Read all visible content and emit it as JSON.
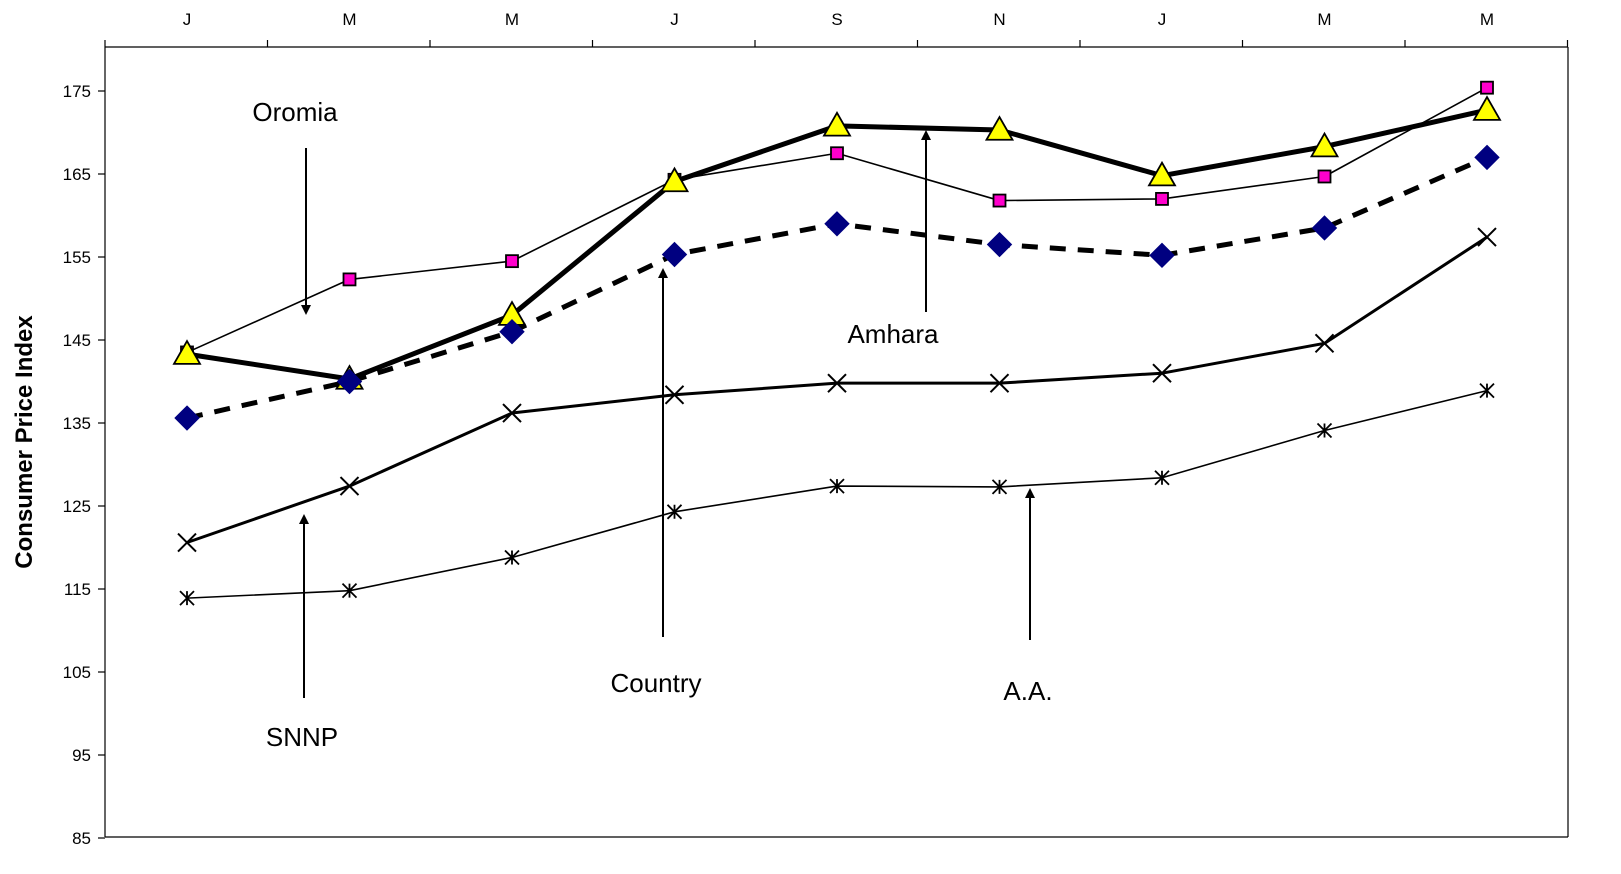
{
  "chart_data": {
    "type": "line",
    "title": "",
    "xlabel": "",
    "ylabel": "Consumer Price Index",
    "categories": [
      "J",
      "M",
      "M",
      "J",
      "S",
      "N",
      "J",
      "M",
      "M"
    ],
    "ylim": [
      85,
      180
    ],
    "yticks": [
      85,
      95,
      105,
      115,
      125,
      135,
      145,
      155,
      165,
      175
    ],
    "grid": false,
    "legend": "none",
    "series": [
      {
        "name": "Oromia",
        "marker": "square",
        "color": "#000000",
        "marker_fill": "#ff00cc",
        "line_style": "solid-thin",
        "values": [
          143.5,
          152.3,
          154.5,
          164.3,
          167.5,
          161.8,
          162.0,
          164.7,
          175.4
        ]
      },
      {
        "name": "Amhara",
        "marker": "triangle",
        "color": "#000000",
        "marker_fill": "#ffff00",
        "line_style": "solid-thick",
        "values": [
          143.3,
          140.3,
          148.0,
          164.1,
          170.8,
          170.3,
          164.8,
          168.3,
          172.7
        ]
      },
      {
        "name": "Country",
        "marker": "diamond",
        "color": "#000000",
        "marker_fill": "#000080",
        "line_style": "dashed",
        "values": [
          135.6,
          140.0,
          146.0,
          155.3,
          159.0,
          156.5,
          155.2,
          158.5,
          167.0
        ]
      },
      {
        "name": "SNNP",
        "marker": "x",
        "color": "#000000",
        "marker_fill": "#000000",
        "line_style": "solid-medium",
        "values": [
          120.6,
          127.4,
          136.2,
          138.4,
          139.8,
          139.8,
          141.0,
          144.6,
          157.4
        ]
      },
      {
        "name": "A.A.",
        "marker": "asterisk",
        "color": "#000000",
        "marker_fill": "#000000",
        "line_style": "solid-thin",
        "values": [
          113.9,
          114.8,
          118.8,
          124.3,
          127.4,
          127.3,
          128.4,
          134.1,
          138.9
        ]
      }
    ],
    "annotations": [
      {
        "text": "Oromia",
        "points_to": "Oromia",
        "arrow": "down"
      },
      {
        "text": "Amhara",
        "points_to": "Amhara",
        "arrow": "up"
      },
      {
        "text": "Country",
        "points_to": "Country",
        "arrow": "up"
      },
      {
        "text": "SNNP",
        "points_to": "SNNP",
        "arrow": "up"
      },
      {
        "text": "A.A.",
        "points_to": "A.A.",
        "arrow": "up"
      }
    ]
  }
}
